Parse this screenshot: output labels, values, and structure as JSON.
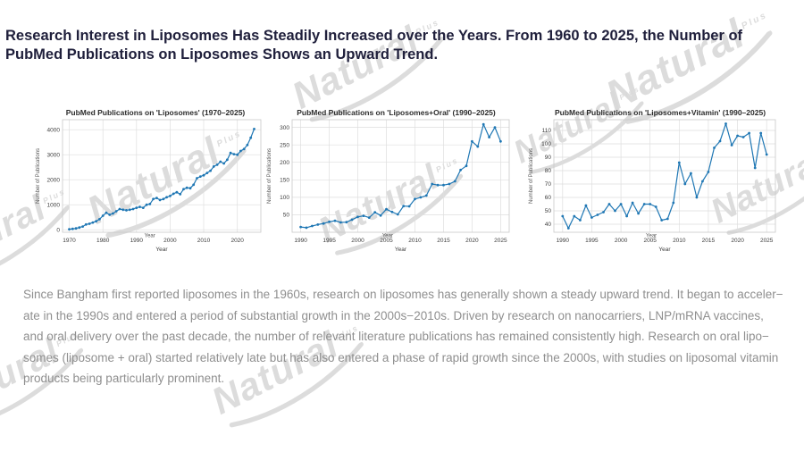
{
  "header": {
    "title": "Research Interest in Liposomes Has Steadily Increased over the Years. From 1960 to 2025, the Number of PubMed Publications on Liposomes Shows an Upward Trend."
  },
  "watermark": {
    "text": "Natural",
    "plus": "Plus"
  },
  "colors": {
    "title_text": "#20203c",
    "body_text": "#8f8f8f",
    "chart_line": "#1f77b4",
    "watermark": "#d9d9d9",
    "grid": "#dedede"
  },
  "chart_data": [
    {
      "type": "line",
      "title": "PubMed Publications on 'Liposomes' (1970–2025)",
      "xlabel": "Year",
      "ylabel": "Number of Publications",
      "grid": true,
      "legend": "none",
      "line_color": "#1f77b4",
      "xlim": [
        1968,
        2027
      ],
      "ylim": [
        -100,
        4400
      ],
      "xticks": [
        1970,
        1980,
        1990,
        2000,
        2010,
        2020
      ],
      "yticks": [
        0,
        1000,
        2000,
        3000,
        4000
      ],
      "years": [
        1970,
        1971,
        1972,
        1973,
        1974,
        1975,
        1976,
        1977,
        1978,
        1979,
        1980,
        1981,
        1982,
        1983,
        1984,
        1985,
        1986,
        1987,
        1988,
        1989,
        1990,
        1991,
        1992,
        1993,
        1994,
        1995,
        1996,
        1997,
        1998,
        1999,
        2000,
        2001,
        2002,
        2003,
        2004,
        2005,
        2006,
        2007,
        2008,
        2009,
        2010,
        2011,
        2012,
        2013,
        2014,
        2015,
        2016,
        2017,
        2018,
        2019,
        2020,
        2021,
        2022,
        2023,
        2024,
        2025
      ],
      "values": [
        20,
        35,
        55,
        90,
        130,
        210,
        240,
        290,
        340,
        420,
        560,
        680,
        600,
        650,
        740,
        830,
        800,
        780,
        800,
        830,
        880,
        915,
        880,
        1000,
        1030,
        1230,
        1270,
        1190,
        1230,
        1300,
        1350,
        1440,
        1500,
        1420,
        1620,
        1680,
        1660,
        1800,
        2060,
        2130,
        2180,
        2270,
        2360,
        2530,
        2600,
        2720,
        2650,
        2800,
        3070,
        3020,
        3000,
        3150,
        3230,
        3390,
        3680,
        4030
      ]
    },
    {
      "type": "line",
      "title": "PubMed Publications on 'Liposomes+Oral' (1990–2025)",
      "xlabel": "Year",
      "ylabel": "Number of Publications",
      "grid": true,
      "legend": "none",
      "line_color": "#1f77b4",
      "xlim": [
        1988.5,
        2026.5
      ],
      "ylim": [
        0,
        322
      ],
      "xticks": [
        1990,
        1995,
        2000,
        2005,
        2010,
        2015,
        2020,
        2025
      ],
      "yticks": [
        50,
        100,
        150,
        200,
        250,
        300
      ],
      "years": [
        1990,
        1991,
        1992,
        1993,
        1994,
        1995,
        1996,
        1997,
        1998,
        1999,
        2000,
        2001,
        2002,
        2003,
        2004,
        2005,
        2006,
        2007,
        2008,
        2009,
        2010,
        2011,
        2012,
        2013,
        2014,
        2015,
        2016,
        2017,
        2018,
        2019,
        2020,
        2021,
        2022,
        2023,
        2024,
        2025
      ],
      "values": [
        15,
        13,
        18,
        22,
        25,
        30,
        33,
        28,
        29,
        36,
        44,
        47,
        42,
        57,
        48,
        66,
        58,
        51,
        75,
        74,
        95,
        100,
        105,
        138,
        135,
        135,
        138,
        146,
        178,
        190,
        260,
        245,
        309,
        272,
        300,
        260
      ]
    },
    {
      "type": "line",
      "title": "PubMed Publications on 'Liposomes+Vitamin' (1990–2025)",
      "xlabel": "Year",
      "ylabel": "Number of Publications",
      "grid": true,
      "legend": "none",
      "line_color": "#1f77b4",
      "xlim": [
        1988.5,
        2026.5
      ],
      "ylim": [
        34,
        118
      ],
      "xticks": [
        1990,
        1995,
        2000,
        2005,
        2010,
        2015,
        2020,
        2025
      ],
      "yticks": [
        40,
        50,
        60,
        70,
        80,
        90,
        100,
        110
      ],
      "years": [
        1990,
        1991,
        1992,
        1993,
        1994,
        1995,
        1996,
        1997,
        1998,
        1999,
        2000,
        2001,
        2002,
        2003,
        2004,
        2005,
        2006,
        2007,
        2008,
        2009,
        2010,
        2011,
        2012,
        2013,
        2014,
        2015,
        2016,
        2017,
        2018,
        2019,
        2020,
        2021,
        2022,
        2023,
        2024,
        2025
      ],
      "values": [
        46,
        37,
        46,
        43,
        54,
        45,
        47,
        49,
        55,
        50,
        55,
        46,
        56,
        48,
        55,
        55,
        53,
        43,
        44,
        56,
        86,
        70,
        78,
        60,
        72,
        79,
        97,
        102,
        115,
        99,
        106,
        105,
        108,
        82,
        108,
        92
      ]
    }
  ],
  "summary": {
    "lines": [
      "Since Bangham first reported liposomes in the 1960s, research on liposomes has generally shown a steady upward trend. It began to acceler−",
      "ate in the 1990s and entered a period of substantial growth in the 2000s−2010s. Driven by research on nanocarriers, LNP/mRNA vaccines,",
      "and oral delivery over the past decade, the number of relevant literature publications has remained consistently high. Research on oral lipo−",
      "somes (liposome + oral) started relatively late but has also entered a phase of rapid growth since the 2000s, with studies on liposomal vitamin",
      "products being particularly prominent."
    ]
  }
}
